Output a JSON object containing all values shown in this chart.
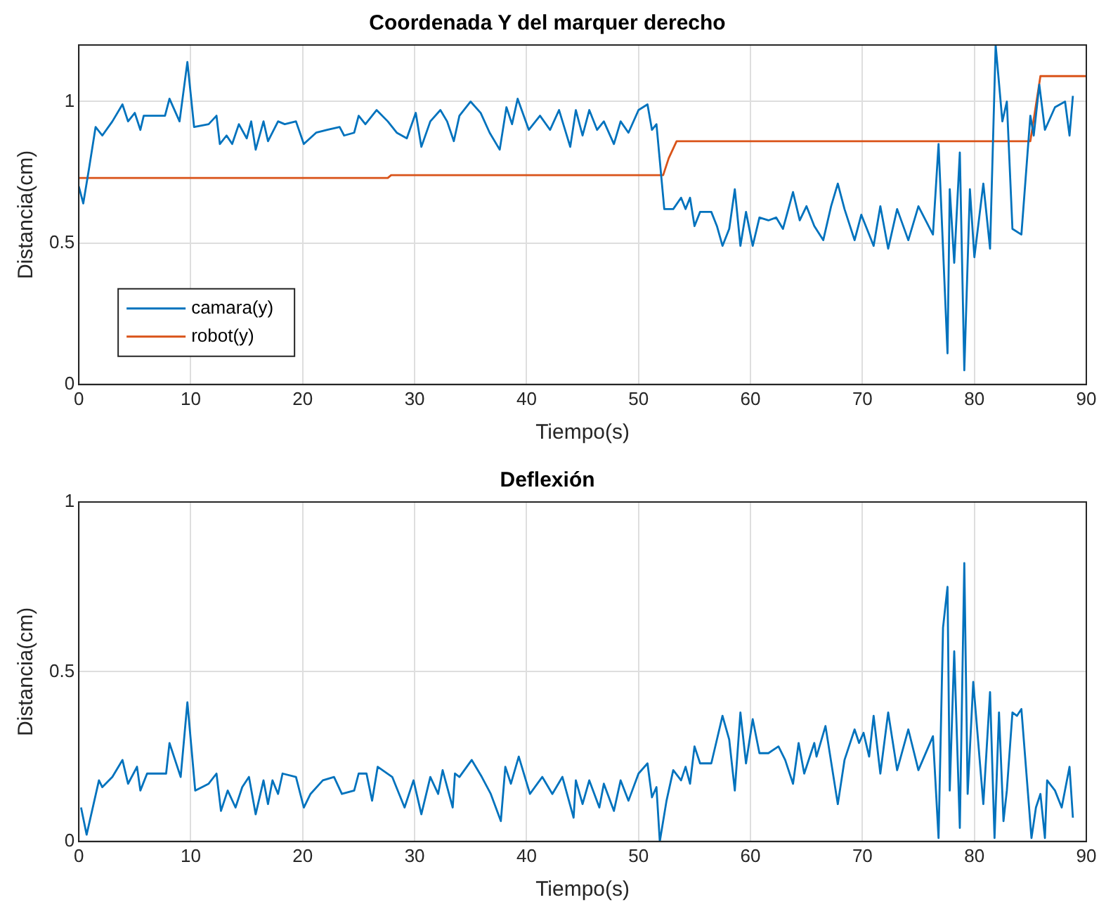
{
  "chart_data": [
    {
      "type": "line",
      "title": "Coordenada Y del marquer derecho",
      "xlabel": "Tiempo(s)",
      "ylabel": "Distancia(cm)",
      "xlim": [
        0,
        90
      ],
      "xticks": [
        0,
        10,
        20,
        30,
        40,
        50,
        60,
        70,
        80,
        90
      ],
      "ylim": [
        0,
        1.2
      ],
      "yticks": [
        0,
        0.5,
        1
      ],
      "grid": true,
      "legend": "bottom left",
      "series": [
        {
          "name": "camara(y)",
          "color": "#0072bd",
          "x": [
            0,
            0.4,
            0.9,
            1.5,
            2.1,
            3.0,
            3.9,
            4.4,
            5.0,
            5.5,
            5.8,
            7.7,
            8.1,
            9.0,
            9.7,
            10.3,
            11.6,
            12.3,
            12.6,
            13.2,
            13.7,
            14.3,
            15.0,
            15.4,
            15.8,
            16.5,
            16.9,
            17.8,
            18.4,
            19.4,
            20.1,
            21.2,
            22.2,
            23.3,
            23.7,
            24.6,
            25.0,
            25.6,
            26.6,
            27.6,
            28.4,
            29.3,
            30.1,
            30.6,
            31.4,
            32.3,
            32.9,
            33.5,
            34.0,
            35.0,
            35.9,
            36.7,
            37.6,
            38.2,
            38.7,
            39.2,
            40.2,
            41.2,
            42.1,
            42.9,
            43.9,
            44.4,
            45.0,
            45.6,
            46.3,
            46.9,
            47.8,
            48.4,
            49.1,
            50.0,
            50.8,
            51.2,
            51.6,
            52.3,
            53.1,
            53.8,
            54.2,
            54.6,
            55.0,
            55.5,
            56.5,
            57.0,
            57.5,
            58.1,
            58.6,
            59.1,
            59.6,
            60.2,
            60.8,
            61.6,
            62.3,
            62.9,
            63.8,
            64.4,
            65.0,
            65.7,
            66.5,
            67.2,
            67.8,
            68.4,
            69.3,
            69.9,
            70.6,
            71.0,
            71.6,
            72.3,
            73.1,
            74.1,
            75.0,
            76.3,
            76.8,
            77.6,
            77.8,
            78.2,
            78.7,
            79.1,
            79.6,
            80.0,
            80.8,
            81.4,
            81.9,
            82.5,
            82.9,
            83.4,
            84.2,
            85.0,
            85.3,
            85.8,
            86.3,
            87.2,
            88.1,
            88.5,
            88.8
          ],
          "values": [
            0.7,
            0.64,
            0.76,
            0.91,
            0.88,
            0.93,
            0.99,
            0.93,
            0.96,
            0.9,
            0.95,
            0.95,
            1.01,
            0.93,
            1.14,
            0.91,
            0.92,
            0.95,
            0.85,
            0.88,
            0.85,
            0.92,
            0.87,
            0.93,
            0.83,
            0.93,
            0.86,
            0.93,
            0.92,
            0.93,
            0.85,
            0.89,
            0.9,
            0.91,
            0.88,
            0.89,
            0.95,
            0.92,
            0.97,
            0.93,
            0.89,
            0.87,
            0.96,
            0.84,
            0.93,
            0.97,
            0.93,
            0.86,
            0.95,
            1.0,
            0.96,
            0.89,
            0.83,
            0.98,
            0.92,
            1.01,
            0.9,
            0.95,
            0.9,
            0.97,
            0.84,
            0.97,
            0.88,
            0.97,
            0.9,
            0.93,
            0.85,
            0.93,
            0.89,
            0.97,
            0.99,
            0.9,
            0.92,
            0.62,
            0.62,
            0.66,
            0.62,
            0.66,
            0.56,
            0.61,
            0.61,
            0.56,
            0.49,
            0.55,
            0.69,
            0.49,
            0.61,
            0.49,
            0.59,
            0.58,
            0.59,
            0.55,
            0.68,
            0.58,
            0.63,
            0.56,
            0.51,
            0.63,
            0.71,
            0.62,
            0.51,
            0.6,
            0.53,
            0.49,
            0.63,
            0.48,
            0.62,
            0.51,
            0.63,
            0.53,
            0.85,
            0.11,
            0.69,
            0.43,
            0.82,
            0.05,
            0.69,
            0.45,
            0.71,
            0.48,
            1.2,
            0.93,
            1.0,
            0.55,
            0.53,
            0.95,
            0.88,
            1.06,
            0.9,
            0.98,
            1.0,
            0.88,
            1.02
          ]
        },
        {
          "name": "robot(y)",
          "color": "#d95319",
          "x": [
            0,
            27.6,
            27.9,
            52.2,
            52.7,
            53.4,
            85.0,
            85.9,
            90
          ],
          "values": [
            0.73,
            0.73,
            0.74,
            0.74,
            0.8,
            0.86,
            0.86,
            1.09,
            1.09
          ]
        }
      ]
    },
    {
      "type": "line",
      "title": "Deflexión",
      "xlabel": "Tiempo(s)",
      "ylabel": "Distancia(cm)",
      "xlim": [
        0,
        90
      ],
      "xticks": [
        0,
        10,
        20,
        30,
        40,
        50,
        60,
        70,
        80,
        90
      ],
      "ylim": [
        0,
        1
      ],
      "yticks": [
        0,
        0.5,
        1
      ],
      "grid": true,
      "series": [
        {
          "color": "#0072bd",
          "x": [
            0.2,
            0.7,
            1.8,
            2.1,
            3.0,
            3.9,
            4.4,
            5.2,
            5.5,
            6.1,
            7.8,
            8.1,
            9.1,
            9.7,
            10.4,
            11.6,
            12.3,
            12.7,
            13.3,
            14.0,
            14.6,
            15.2,
            15.8,
            16.5,
            16.9,
            17.3,
            17.8,
            18.2,
            19.4,
            20.1,
            20.7,
            21.8,
            22.8,
            23.5,
            24.6,
            25.0,
            25.7,
            26.2,
            26.7,
            28.0,
            29.1,
            29.9,
            30.6,
            31.4,
            32.1,
            32.5,
            33.4,
            33.6,
            34.0,
            35.1,
            36.0,
            36.8,
            37.7,
            38.1,
            38.6,
            39.3,
            40.3,
            41.4,
            42.3,
            43.2,
            44.2,
            44.4,
            45.0,
            45.6,
            46.5,
            46.9,
            47.8,
            48.4,
            49.1,
            50.0,
            50.8,
            51.2,
            51.6,
            51.9,
            52.5,
            53.1,
            53.8,
            54.2,
            54.6,
            55.0,
            55.5,
            56.5,
            57.0,
            57.5,
            58.1,
            58.6,
            59.1,
            59.6,
            60.2,
            60.8,
            61.6,
            62.5,
            63.1,
            63.8,
            64.3,
            64.8,
            65.7,
            65.9,
            66.7,
            67.8,
            68.4,
            69.3,
            69.7,
            70.1,
            70.6,
            71.0,
            71.6,
            72.3,
            73.1,
            74.1,
            75.0,
            76.3,
            76.8,
            77.2,
            77.6,
            77.8,
            78.2,
            78.7,
            79.1,
            79.4,
            79.9,
            80.8,
            81.4,
            81.8,
            82.2,
            82.6,
            82.9,
            83.4,
            83.8,
            84.2,
            85.1,
            85.5,
            85.9,
            86.3,
            86.5,
            87.2,
            87.8,
            88.5,
            88.8
          ],
          "values": [
            0.1,
            0.02,
            0.18,
            0.16,
            0.19,
            0.24,
            0.17,
            0.22,
            0.15,
            0.2,
            0.2,
            0.29,
            0.19,
            0.41,
            0.15,
            0.17,
            0.2,
            0.09,
            0.15,
            0.1,
            0.16,
            0.19,
            0.08,
            0.18,
            0.11,
            0.18,
            0.14,
            0.2,
            0.19,
            0.1,
            0.14,
            0.18,
            0.19,
            0.14,
            0.15,
            0.2,
            0.2,
            0.12,
            0.22,
            0.19,
            0.1,
            0.18,
            0.08,
            0.19,
            0.14,
            0.21,
            0.1,
            0.2,
            0.19,
            0.24,
            0.19,
            0.14,
            0.06,
            0.22,
            0.17,
            0.25,
            0.14,
            0.19,
            0.14,
            0.19,
            0.07,
            0.18,
            0.11,
            0.18,
            0.1,
            0.17,
            0.09,
            0.18,
            0.12,
            0.2,
            0.23,
            0.13,
            0.16,
            0.0,
            0.12,
            0.21,
            0.18,
            0.22,
            0.17,
            0.28,
            0.23,
            0.23,
            0.3,
            0.37,
            0.3,
            0.15,
            0.38,
            0.23,
            0.36,
            0.26,
            0.26,
            0.28,
            0.24,
            0.17,
            0.29,
            0.2,
            0.29,
            0.25,
            0.34,
            0.11,
            0.24,
            0.33,
            0.29,
            0.32,
            0.25,
            0.37,
            0.2,
            0.38,
            0.21,
            0.33,
            0.21,
            0.31,
            0.01,
            0.63,
            0.75,
            0.15,
            0.56,
            0.04,
            0.82,
            0.14,
            0.47,
            0.11,
            0.44,
            0.01,
            0.38,
            0.06,
            0.15,
            0.38,
            0.37,
            0.39,
            0.01,
            0.1,
            0.14,
            0.01,
            0.18,
            0.15,
            0.1,
            0.22,
            0.07
          ]
        }
      ]
    }
  ]
}
